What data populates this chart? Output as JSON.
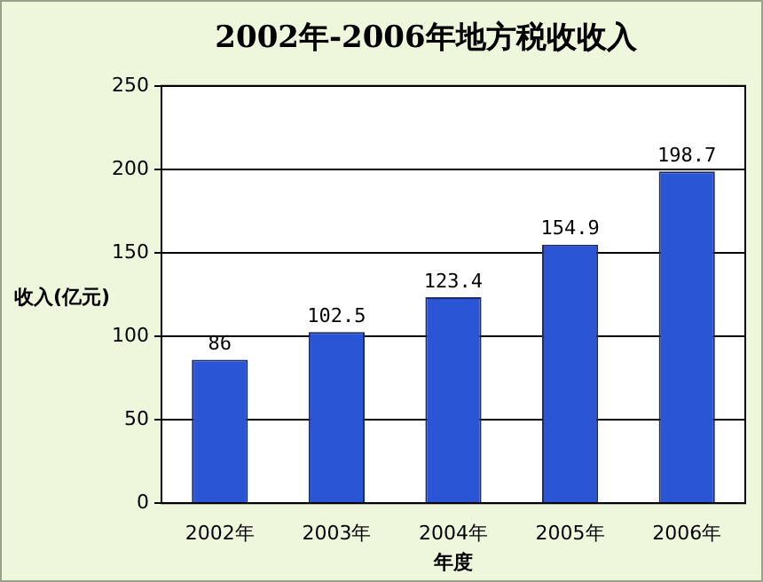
{
  "chart_data": {
    "type": "bar",
    "title": "2002年-2006年地方税收收入",
    "xlabel": "年度",
    "ylabel": "收入(亿元)",
    "categories": [
      "2002年",
      "2003年",
      "2004年",
      "2005年",
      "2006年"
    ],
    "values": [
      86,
      102.5,
      123.4,
      154.9,
      198.7
    ],
    "color": "#2a56d6",
    "ylim": [
      0,
      250
    ],
    "yticks": [
      0,
      50,
      100,
      150,
      200,
      250
    ],
    "grid": "y",
    "data_labels": true
  }
}
